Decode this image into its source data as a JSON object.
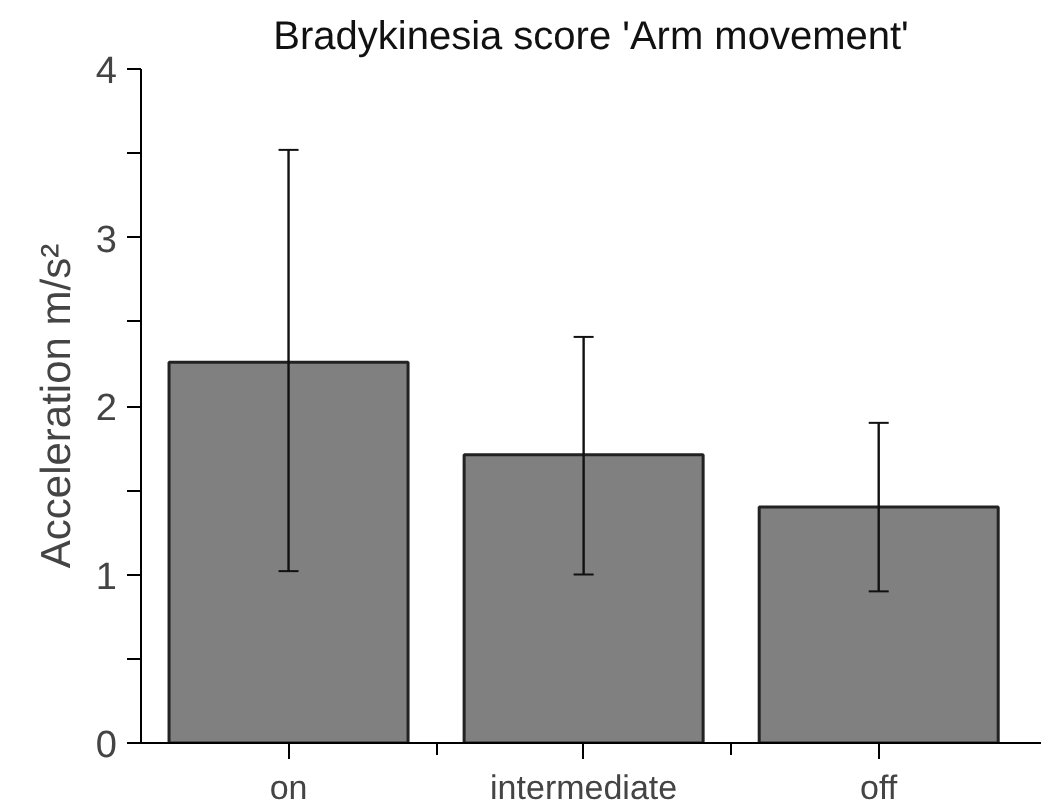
{
  "chart_data": {
    "type": "bar",
    "title": "Bradykinesia score 'Arm movement'",
    "ylabel": "Acceleration m/s²",
    "categories": [
      "on",
      "intermediate",
      "off"
    ],
    "values": [
      2.26,
      1.71,
      1.4
    ],
    "errors": [
      [
        1.02,
        3.52
      ],
      [
        1.0,
        2.41
      ],
      [
        0.9,
        1.9
      ]
    ],
    "color": "#808080",
    "ylim": [
      0,
      4
    ],
    "yticks": [
      0,
      {
        "value": 0.5,
        "label": null
      },
      1,
      {
        "value": 1.5,
        "label": null
      },
      2,
      {
        "value": 2.5,
        "label": null
      },
      3,
      {
        "value": 3.5,
        "label": null
      },
      4
    ],
    "grid": false
  }
}
